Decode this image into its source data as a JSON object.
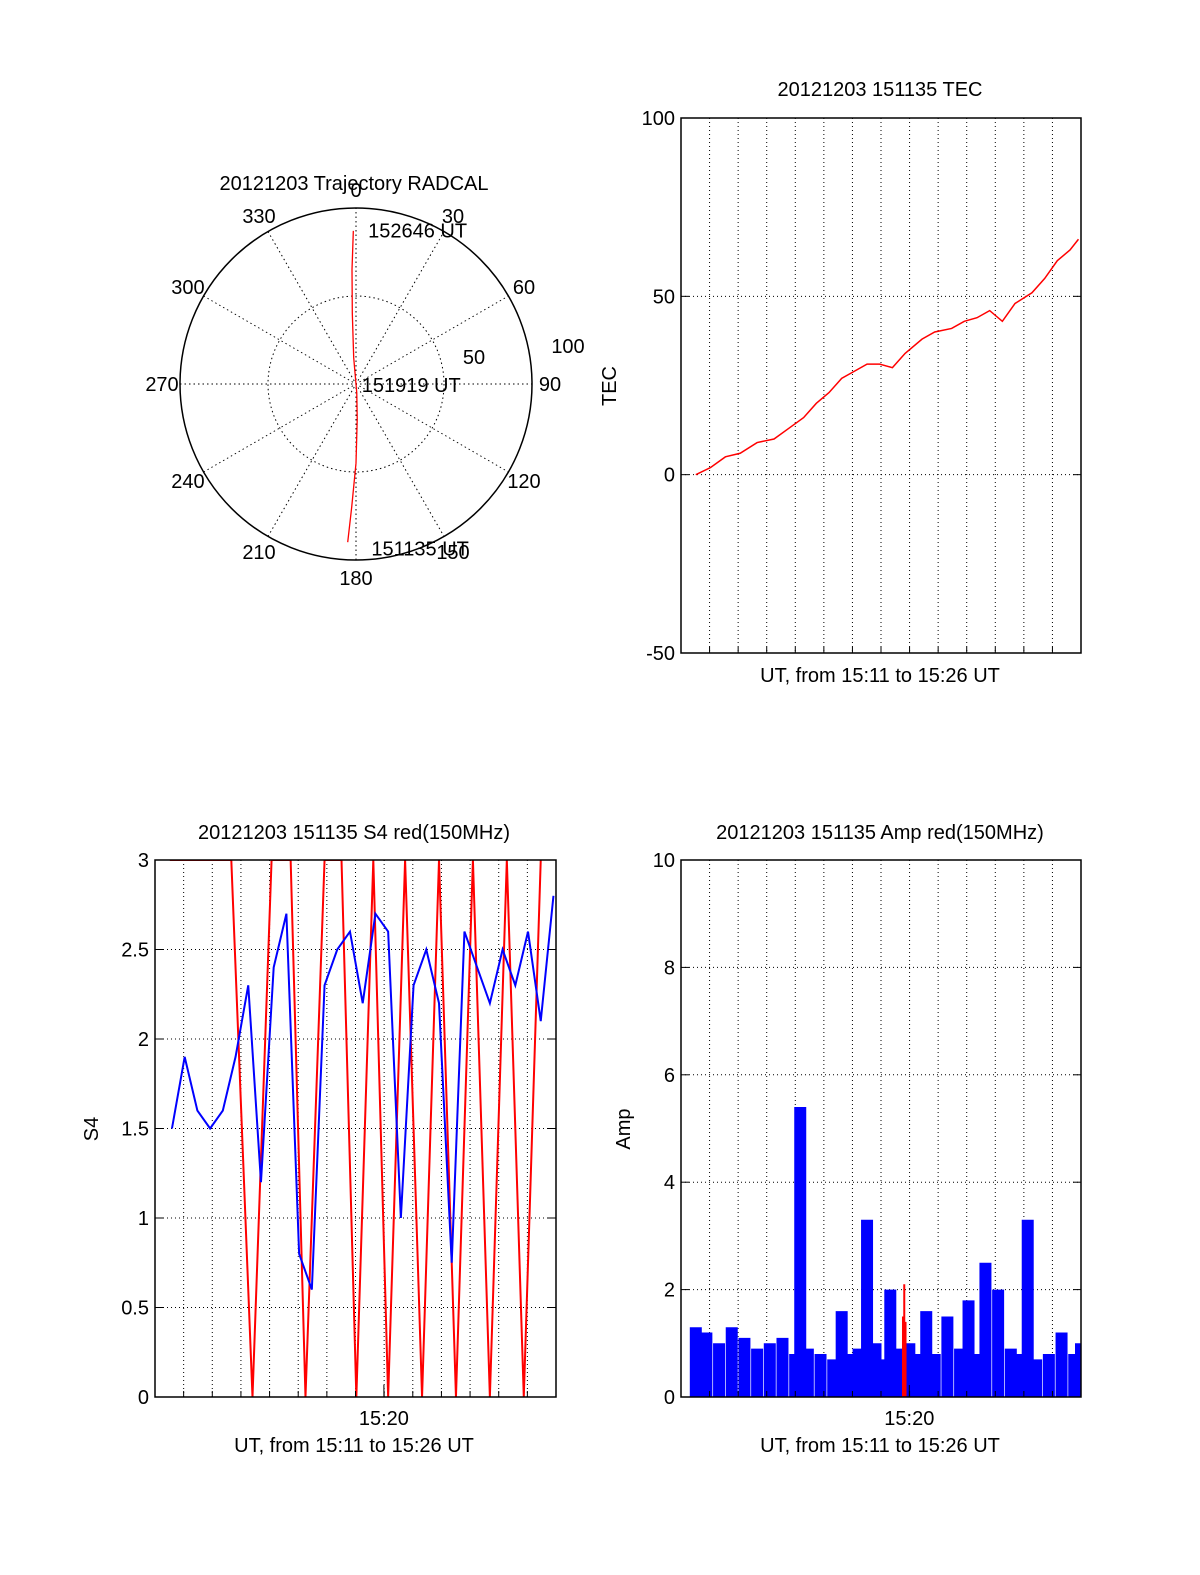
{
  "chart_data": [
    {
      "type": "polar",
      "title": "20121203 Trajectory RADCAL",
      "angle_labels": [
        "0",
        "30",
        "60",
        "90",
        "120",
        "150",
        "180",
        "210",
        "240",
        "270",
        "300",
        "330"
      ],
      "radius_labels": [
        "50",
        "100"
      ],
      "rlim": [
        0,
        100
      ],
      "grid": true,
      "series": [
        {
          "color": "#ff0000",
          "points": [
            {
              "az": 183,
              "r": 90
            },
            {
              "az": 182,
              "r": 70
            },
            {
              "az": 180,
              "r": 45
            },
            {
              "az": 178,
              "r": 20
            },
            {
              "az": 175,
              "r": 5
            },
            {
              "az": 0,
              "r": 0
            },
            {
              "az": 355,
              "r": 15
            },
            {
              "az": 357,
              "r": 40
            },
            {
              "az": 358,
              "r": 65
            },
            {
              "az": 359,
              "r": 87
            }
          ]
        }
      ],
      "annotations": [
        {
          "text": "152646 UT",
          "az": 3,
          "r": 88
        },
        {
          "text": "151919 UT",
          "az": 90,
          "r": 1
        },
        {
          "text": "151135 UT",
          "az": 176,
          "r": 93
        }
      ]
    },
    {
      "type": "line",
      "title": "20121203 151135 TEC",
      "xlabel": "UT, from 15:11 to 15:26 UT",
      "ylabel": "TEC",
      "ylim": [
        -50,
        100
      ],
      "yticks": [
        "100",
        "50",
        "0",
        "-50"
      ],
      "xlim": [
        "15:11:00",
        "15:26:46"
      ],
      "grid": true,
      "series": [
        {
          "color": "#ff0000",
          "x": [
            "15:11:35",
            "15:12:10",
            "15:12:45",
            "15:13:20",
            "15:14:00",
            "15:14:40",
            "15:15:15",
            "15:15:50",
            "15:16:20",
            "15:16:50",
            "15:17:20",
            "15:17:50",
            "15:18:20",
            "15:18:50",
            "15:19:20",
            "15:19:50",
            "15:20:30",
            "15:21:00",
            "15:21:40",
            "15:22:10",
            "15:22:40",
            "15:23:10",
            "15:23:40",
            "15:24:10",
            "15:24:50",
            "15:25:20",
            "15:25:50",
            "15:26:20",
            "15:26:40"
          ],
          "y": [
            0,
            2,
            5,
            6,
            9,
            10,
            13,
            16,
            20,
            23,
            27,
            29,
            31,
            31,
            30,
            34,
            38,
            40,
            41,
            43,
            44,
            46,
            43,
            48,
            51,
            55,
            60,
            63,
            66
          ]
        }
      ]
    },
    {
      "type": "line",
      "title": "20121203 151135 S4 red(150MHz)",
      "xlabel": "UT, from 15:11 to 15:26 UT",
      "ylabel": "S4",
      "ylim": [
        0,
        3
      ],
      "yticks": [
        "3",
        "2.5",
        "2",
        "1.5",
        "1",
        "0.5",
        "0"
      ],
      "xlim": [
        "15:11:00",
        "15:26:46"
      ],
      "xticklabel": "15:20",
      "grid": true,
      "series": [
        {
          "color": "#ff0000",
          "x": [
            "15:11:35",
            "15:14:00",
            "15:14:50",
            "15:15:35",
            "15:16:20",
            "15:16:55",
            "15:17:40",
            "15:18:20",
            "15:18:55",
            "15:19:35",
            "15:20:10",
            "15:20:50",
            "15:21:30",
            "15:22:10",
            "15:22:50",
            "15:23:30",
            "15:24:10",
            "15:24:50",
            "15:25:30",
            "15:26:10"
          ],
          "y": [
            3,
            3,
            0,
            3,
            3,
            0,
            3,
            3,
            0,
            3,
            0,
            3,
            0,
            3,
            0,
            3,
            0,
            3,
            0,
            3
          ]
        },
        {
          "color": "#0000ff",
          "x": [
            "15:11:40",
            "15:12:10",
            "15:12:40",
            "15:13:10",
            "15:13:40",
            "15:14:10",
            "15:14:40",
            "15:15:10",
            "15:15:40",
            "15:16:10",
            "15:16:40",
            "15:17:10",
            "15:17:40",
            "15:18:10",
            "15:18:40",
            "15:19:10",
            "15:19:40",
            "15:20:10",
            "15:20:40",
            "15:21:10",
            "15:21:40",
            "15:22:10",
            "15:22:40",
            "15:23:10",
            "15:23:40",
            "15:24:10",
            "15:24:40",
            "15:25:10",
            "15:25:40",
            "15:26:10",
            "15:26:40"
          ],
          "y": [
            1.5,
            1.9,
            1.6,
            1.5,
            1.6,
            1.9,
            2.3,
            1.2,
            2.4,
            2.7,
            0.8,
            0.6,
            2.3,
            2.5,
            2.6,
            2.2,
            2.7,
            2.6,
            1.0,
            2.3,
            2.5,
            2.2,
            0.75,
            2.6,
            2.4,
            2.2,
            2.5,
            2.3,
            2.6,
            2.1,
            2.8
          ]
        }
      ]
    },
    {
      "type": "line",
      "title": "20121203 151135 Amp red(150MHz)",
      "xlabel": "UT, from 15:11 to 15:26 UT",
      "ylabel": "Amp",
      "ylim": [
        0,
        10
      ],
      "yticks": [
        "10",
        "8",
        "6",
        "4",
        "2",
        "0"
      ],
      "xlim": [
        "15:11:00",
        "15:26:46"
      ],
      "xticklabel": "15:20",
      "grid": true,
      "series": [
        {
          "color": "#0000ff",
          "x": [
            "15:11:35",
            "15:12:00",
            "15:12:30",
            "15:13:00",
            "15:13:30",
            "15:14:00",
            "15:14:30",
            "15:15:00",
            "15:15:30",
            "15:15:42",
            "15:16:00",
            "15:16:30",
            "15:17:00",
            "15:17:20",
            "15:17:40",
            "15:18:00",
            "15:18:20",
            "15:18:40",
            "15:19:00",
            "15:19:15",
            "15:19:30",
            "15:20:00",
            "15:20:20",
            "15:20:40",
            "15:21:00",
            "15:21:30",
            "15:22:00",
            "15:22:20",
            "15:22:40",
            "15:23:00",
            "15:23:30",
            "15:24:00",
            "15:24:20",
            "15:24:40",
            "15:25:00",
            "15:25:30",
            "15:26:00",
            "15:26:30",
            "15:26:46"
          ],
          "y": [
            1.3,
            1.2,
            1.0,
            1.3,
            1.1,
            0.9,
            1.0,
            1.1,
            0.8,
            5.4,
            0.9,
            0.8,
            0.7,
            1.6,
            0.8,
            0.9,
            3.3,
            1.0,
            0.7,
            2.0,
            0.9,
            1.0,
            0.8,
            1.6,
            0.8,
            1.5,
            0.9,
            1.8,
            0.8,
            2.5,
            2.0,
            0.9,
            0.8,
            3.3,
            0.7,
            0.8,
            1.2,
            0.8,
            1.0
          ]
        },
        {
          "color": "#ff0000",
          "x": [
            "15:19:45",
            "15:19:48",
            "15:19:51"
          ],
          "y": [
            1.5,
            2.1,
            1.4
          ]
        }
      ]
    }
  ]
}
